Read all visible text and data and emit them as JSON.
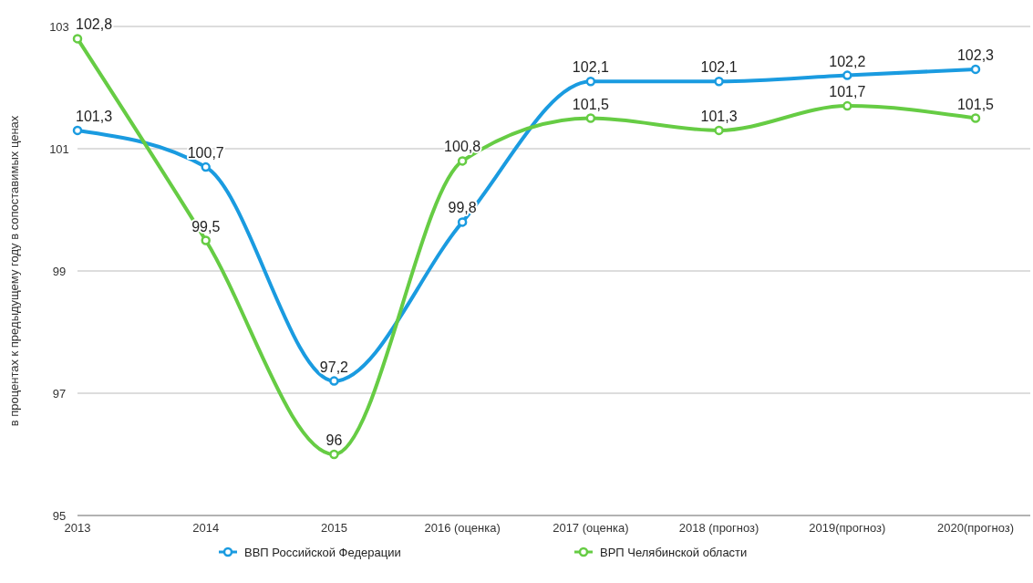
{
  "chart_data": {
    "type": "line",
    "ylabel": "в процентах к предыдущему году в сопоставимых ценах",
    "categories": [
      "2013",
      "2014",
      "2015",
      "2016 (оценка)",
      "2017 (оценка)",
      "2018 (прогноз)",
      "2019(прогноз)",
      "2020(прогноз)"
    ],
    "series": [
      {
        "name": "ВВП Российской Федерации",
        "color": "#1a9be0",
        "values": [
          101.3,
          100.7,
          97.2,
          99.8,
          102.1,
          102.1,
          102.2,
          102.3
        ],
        "value_labels": [
          "101,3",
          "100,7",
          "97,2",
          "99,8",
          "102,1",
          "102,1",
          "102,2",
          "102,3"
        ]
      },
      {
        "name": "ВРП Челябинской области",
        "color": "#66cc44",
        "values": [
          102.8,
          99.5,
          96,
          100.8,
          101.5,
          101.3,
          101.7,
          101.5
        ],
        "value_labels": [
          "102,8",
          "99,5",
          "96",
          "100,8",
          "101,5",
          "101,3",
          "101,7",
          "101,5"
        ]
      }
    ],
    "ylim": [
      95,
      103
    ],
    "yticks": [
      95,
      97,
      99,
      101,
      103
    ],
    "grid": "y",
    "legend": "bottom",
    "marker": "circle"
  }
}
